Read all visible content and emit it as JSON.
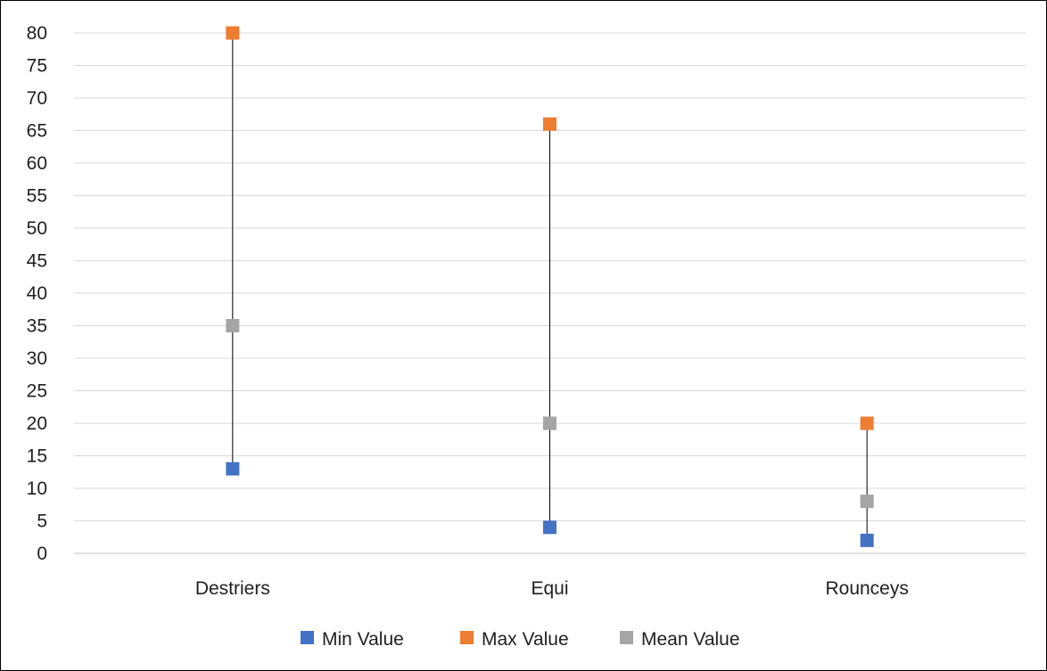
{
  "chart_data": {
    "type": "scatter",
    "categories": [
      "Destriers",
      "Equi",
      "Rounceys"
    ],
    "series": [
      {
        "name": "Min Value",
        "values": [
          13,
          4,
          2
        ],
        "color": "#4472c4"
      },
      {
        "name": "Max Value",
        "values": [
          80,
          66,
          20
        ],
        "color": "#ed7d31"
      },
      {
        "name": "Mean Value",
        "values": [
          35,
          20,
          8
        ],
        "color": "#a5a5a5"
      }
    ],
    "ylim": [
      0,
      80
    ],
    "yticks": [
      0,
      5,
      10,
      15,
      20,
      25,
      30,
      35,
      40,
      45,
      50,
      55,
      60,
      65,
      70,
      75,
      80
    ],
    "grid": true,
    "high_low_lines": true,
    "legend_position": "bottom",
    "title": "",
    "xlabel": "",
    "ylabel": ""
  }
}
